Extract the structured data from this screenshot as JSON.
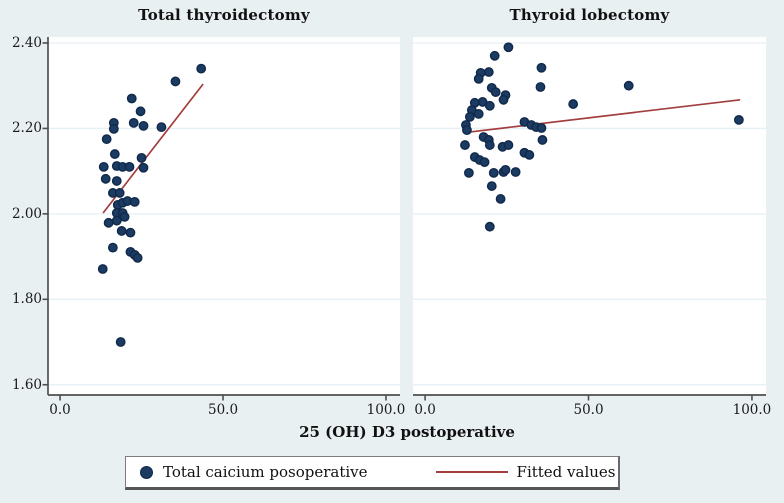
{
  "chart_data": {
    "type": "scatter",
    "xlabel": "25 (OH) D3 postoperative",
    "x_domain": [
      -3.7,
      104.3
    ],
    "y_domain": [
      1.576,
      2.414
    ],
    "x_ticks": [
      {
        "v": 0,
        "label": "0.0"
      },
      {
        "v": 50,
        "label": "50.0"
      },
      {
        "v": 100,
        "label": "100.0"
      }
    ],
    "y_ticks": [
      {
        "v": 2.4,
        "label": "2.40"
      },
      {
        "v": 2.2,
        "label": "2.20"
      },
      {
        "v": 2.0,
        "label": "2.00"
      },
      {
        "v": 1.8,
        "label": "1.80"
      },
      {
        "v": 1.6,
        "label": "1.60"
      }
    ],
    "grid": true,
    "legend_position": "bottom",
    "legend": [
      {
        "type": "marker",
        "label": "Total caicium posoperative"
      },
      {
        "type": "line",
        "label": "Fitted values"
      }
    ],
    "panels": [
      {
        "title": "Total thyroidectomy",
        "series_name": "Total caicium posoperative",
        "points": [
          [
            43.3,
            2.34
          ],
          [
            35.4,
            2.31
          ],
          [
            22.0,
            2.27
          ],
          [
            24.7,
            2.24
          ],
          [
            16.5,
            2.213
          ],
          [
            22.6,
            2.213
          ],
          [
            25.6,
            2.206
          ],
          [
            31.1,
            2.203
          ],
          [
            16.5,
            2.199
          ],
          [
            14.3,
            2.175
          ],
          [
            16.8,
            2.14
          ],
          [
            25.0,
            2.131
          ],
          [
            13.4,
            2.11
          ],
          [
            17.4,
            2.112
          ],
          [
            19.2,
            2.11
          ],
          [
            21.3,
            2.11
          ],
          [
            25.6,
            2.108
          ],
          [
            14.0,
            2.082
          ],
          [
            17.4,
            2.077
          ],
          [
            16.2,
            2.049
          ],
          [
            18.3,
            2.049
          ],
          [
            17.7,
            2.021
          ],
          [
            19.2,
            2.026
          ],
          [
            20.7,
            2.03
          ],
          [
            22.9,
            2.028
          ],
          [
            17.4,
            2.002
          ],
          [
            19.2,
            2.002
          ],
          [
            19.8,
            1.993
          ],
          [
            14.9,
            1.979
          ],
          [
            17.4,
            1.984
          ],
          [
            18.9,
            1.96
          ],
          [
            21.6,
            1.956
          ],
          [
            16.2,
            1.921
          ],
          [
            21.6,
            1.911
          ],
          [
            22.9,
            1.904
          ],
          [
            23.8,
            1.897
          ],
          [
            13.1,
            1.871
          ],
          [
            18.6,
            1.7
          ]
        ],
        "fit_line": {
          "x1": 13.2,
          "y1": 2.002,
          "x2": 43.9,
          "y2": 2.304
        },
        "left_axis": true
      },
      {
        "title": "Thyroid lobectomy",
        "series_name": "Total caicium posoperative",
        "points": [
          [
            25.5,
            2.39
          ],
          [
            21.3,
            2.37
          ],
          [
            17.0,
            2.33
          ],
          [
            19.5,
            2.332
          ],
          [
            16.4,
            2.316
          ],
          [
            35.6,
            2.342
          ],
          [
            35.3,
            2.297
          ],
          [
            20.4,
            2.295
          ],
          [
            21.6,
            2.285
          ],
          [
            24.6,
            2.278
          ],
          [
            24.0,
            2.267
          ],
          [
            17.6,
            2.262
          ],
          [
            19.8,
            2.253
          ],
          [
            15.2,
            2.26
          ],
          [
            14.3,
            2.243
          ],
          [
            16.4,
            2.234
          ],
          [
            13.7,
            2.227
          ],
          [
            45.3,
            2.257
          ],
          [
            12.5,
            2.208
          ],
          [
            12.8,
            2.196
          ],
          [
            30.4,
            2.215
          ],
          [
            32.5,
            2.208
          ],
          [
            34.0,
            2.203
          ],
          [
            35.6,
            2.201
          ],
          [
            17.9,
            2.18
          ],
          [
            19.5,
            2.173
          ],
          [
            19.8,
            2.161
          ],
          [
            12.2,
            2.161
          ],
          [
            23.7,
            2.157
          ],
          [
            25.5,
            2.161
          ],
          [
            35.9,
            2.173
          ],
          [
            30.4,
            2.143
          ],
          [
            31.9,
            2.138
          ],
          [
            15.2,
            2.133
          ],
          [
            16.7,
            2.126
          ],
          [
            18.2,
            2.121
          ],
          [
            13.4,
            2.096
          ],
          [
            21.0,
            2.096
          ],
          [
            24.0,
            2.098
          ],
          [
            24.6,
            2.103
          ],
          [
            27.7,
            2.098
          ],
          [
            20.4,
            2.065
          ],
          [
            23.1,
            2.035
          ],
          [
            19.8,
            1.97
          ],
          [
            62.3,
            2.3
          ],
          [
            96.0,
            2.22
          ]
        ],
        "fit_line": {
          "x1": 11.9,
          "y1": 2.19,
          "x2": 96.4,
          "y2": 2.267
        },
        "left_axis": false
      }
    ],
    "colors": {
      "background": "#e9f0f2",
      "plot_background": "#ffffff",
      "marker_fill": "#1b3b63",
      "marker_edge": "#10294a",
      "fit_line": "#a33e3e",
      "gridline": "#e5eff4",
      "axis_line": "#4f4f4f"
    }
  }
}
